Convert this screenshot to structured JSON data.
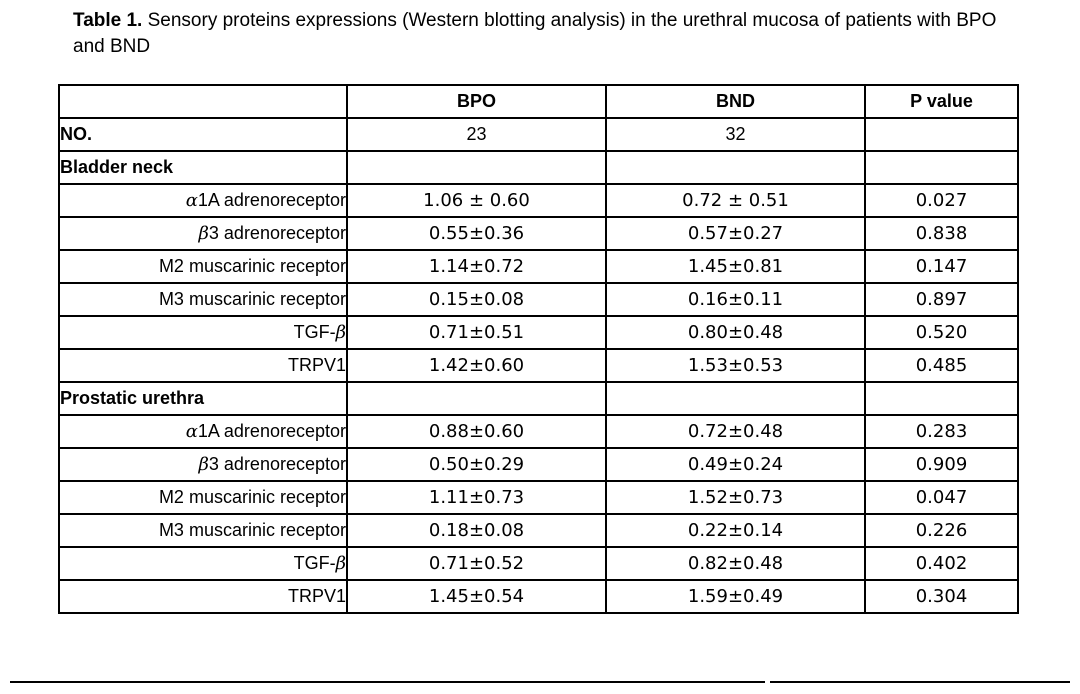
{
  "caption": {
    "label": "Table 1.",
    "text": " Sensory proteins expressions (Western blotting analysis) in the urethral mucosa of patients with BPO and BND"
  },
  "table": {
    "headers": [
      "",
      "BPO",
      "BND",
      "P value"
    ],
    "no_row": {
      "label": "NO.",
      "bpo": "23",
      "bnd": "32",
      "p": ""
    },
    "sections": [
      {
        "title": "Bladder neck",
        "rows": [
          {
            "greek": "α",
            "label": "1A adrenoreceptor",
            "bpo": "1.06 ± 0.60",
            "bnd": "0.72 ± 0.51",
            "p": "0.027"
          },
          {
            "greek": "β",
            "label": "3 adrenoreceptor",
            "bpo": "0.55±0.36",
            "bnd": "0.57±0.27",
            "p": "0.838"
          },
          {
            "greek": "",
            "label": "M2 muscarinic receptor",
            "bpo": "1.14±0.72",
            "bnd": "1.45±0.81",
            "p": "0.147"
          },
          {
            "greek": "",
            "label": "M3 muscarinic receptor",
            "bpo": "0.15±0.08",
            "bnd": "0.16±0.11",
            "p": "0.897"
          },
          {
            "greek": "",
            "label": "TGF-",
            "greek_after": "β",
            "bpo": "0.71±0.51",
            "bnd": "0.80±0.48",
            "p": "0.520"
          },
          {
            "greek": "",
            "label": "TRPV1",
            "bpo": "1.42±0.60",
            "bnd": "1.53±0.53",
            "p": "0.485"
          }
        ]
      },
      {
        "title": "Prostatic urethra",
        "rows": [
          {
            "greek": "α",
            "label": "1A adrenoreceptor",
            "bpo": "0.88±0.60",
            "bnd": "0.72±0.48",
            "p": "0.283"
          },
          {
            "greek": "β",
            "label": "3 adrenoreceptor",
            "bpo": "0.50±0.29",
            "bnd": "0.49±0.24",
            "p": "0.909"
          },
          {
            "greek": "",
            "label": "M2 muscarinic receptor",
            "bpo": "1.11±0.73",
            "bnd": "1.52±0.73",
            "p": "0.047"
          },
          {
            "greek": "",
            "label": "M3 muscarinic receptor",
            "bpo": "0.18±0.08",
            "bnd": "0.22±0.14",
            "p": "0.226"
          },
          {
            "greek": "",
            "label": "TGF-",
            "greek_after": "β",
            "bpo": "0.71±0.52",
            "bnd": "0.82±0.48",
            "p": "0.402"
          },
          {
            "greek": "",
            "label": "TRPV1",
            "bpo": "1.45±0.54",
            "bnd": "1.59±0.49",
            "p": "0.304"
          }
        ]
      }
    ]
  }
}
